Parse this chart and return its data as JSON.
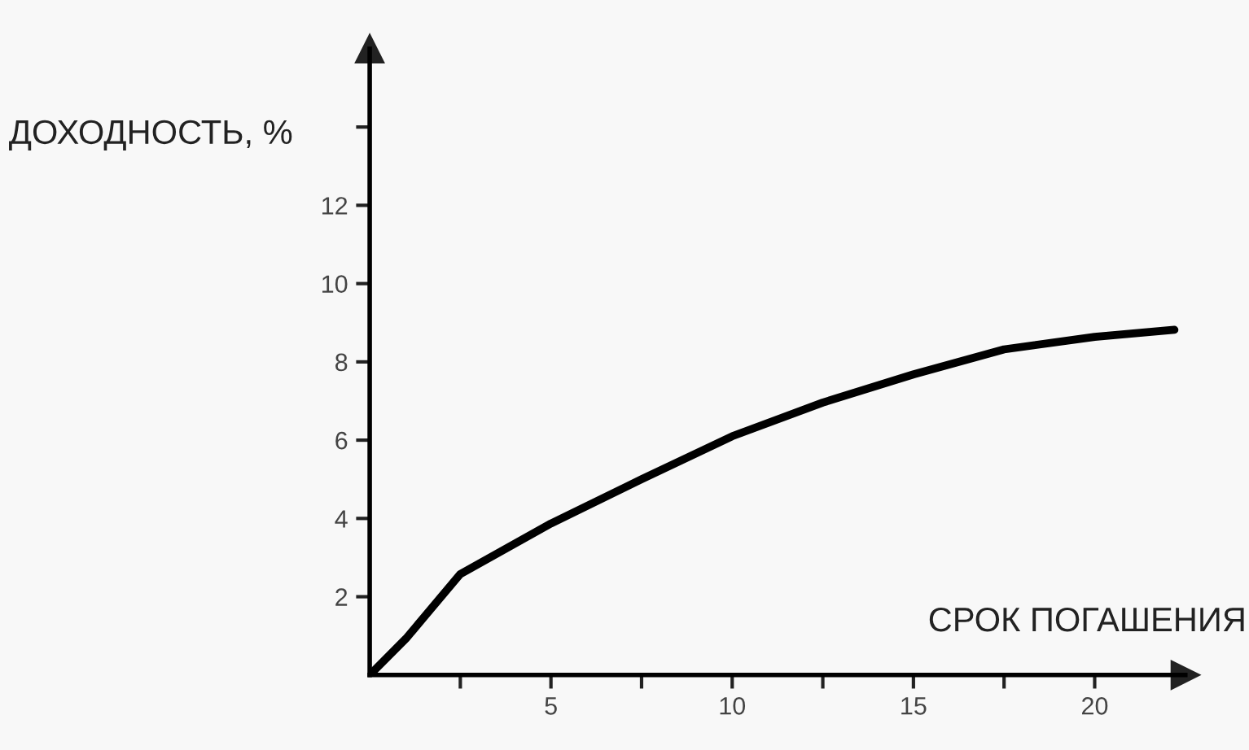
{
  "chart_data": {
    "type": "line",
    "xlabel": "СРОК ПОГАШЕНИЯ",
    "ylabel": "ДОХОДНОСТЬ, %",
    "x": [
      0,
      1,
      2.5,
      5,
      7.5,
      10,
      12.5,
      15,
      17.5,
      20,
      22.2
    ],
    "series": [
      {
        "color": "#000000",
        "values": [
          0,
          0.93,
          2.58,
          3.87,
          5.0,
          6.1,
          6.96,
          7.68,
          8.32,
          8.64,
          8.82
        ]
      }
    ],
    "xlim": [
      0,
      22.5
    ],
    "ylim": [
      0,
      16
    ],
    "xticks": [
      {
        "value": 2.5,
        "label": null
      },
      5,
      {
        "value": 7.5,
        "label": null
      },
      10,
      {
        "value": 12.5,
        "label": null
      },
      15,
      {
        "value": 17.5,
        "label": null
      },
      20
    ],
    "yticks": [
      2,
      4,
      6,
      8,
      10,
      12,
      {
        "value": 14,
        "label": null
      }
    ],
    "grid": false,
    "legend": false,
    "marker": "none",
    "line_style": "solid"
  }
}
